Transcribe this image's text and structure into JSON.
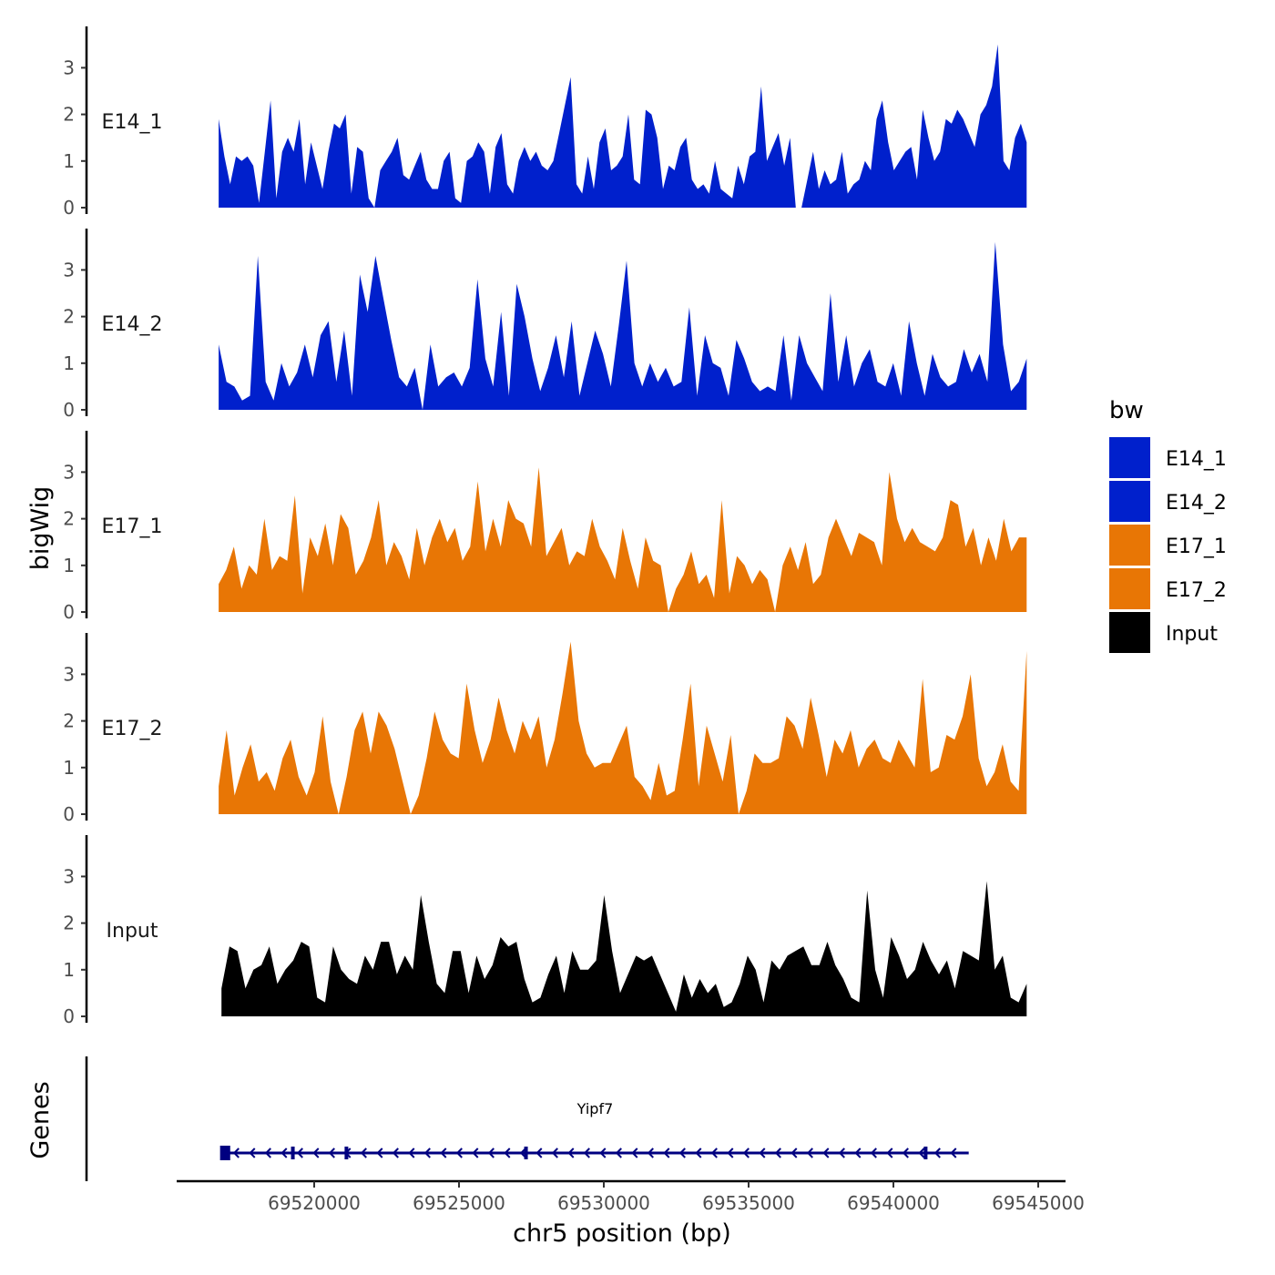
{
  "chart_data": {
    "type": "area",
    "title": "",
    "xlabel": "chr5 position (bp)",
    "ylabel": "bigWig",
    "genes_label": "Genes",
    "xlim": [
      69514600,
      69545500
    ],
    "ylim": [
      0,
      3.8
    ],
    "x_ticks": [
      69520000,
      69525000,
      69530000,
      69535000,
      69540000,
      69545000
    ],
    "x_tick_labels": [
      "69520000",
      "69525000",
      "69530000",
      "69535000",
      "69540000",
      "69545000"
    ],
    "y_ticks": [
      0,
      1,
      2,
      3
    ],
    "y_tick_labels": [
      "0",
      "1",
      "2",
      "3"
    ],
    "grid": false,
    "legend": {
      "title": "bw",
      "position": "right",
      "entries": [
        {
          "label": "E14_1",
          "color": "#0020CC"
        },
        {
          "label": "E14_2",
          "color": "#0020CC"
        },
        {
          "label": "E17_1",
          "color": "#E87605"
        },
        {
          "label": "E17_2",
          "color": "#E87605"
        },
        {
          "label": "Input",
          "color": "#000000"
        }
      ]
    },
    "series": [
      {
        "name": "E14_1",
        "color": "#0020CC",
        "x_start": 69516700,
        "x_end": 69544600,
        "values": [
          1.9,
          1.1,
          0.5,
          1.1,
          1.0,
          1.1,
          0.9,
          0.1,
          1.2,
          2.3,
          0.2,
          1.2,
          1.5,
          1.2,
          1.9,
          0.5,
          1.4,
          0.9,
          0.4,
          1.2,
          1.8,
          1.7,
          2.0,
          0.3,
          1.3,
          1.2,
          0.2,
          0.0,
          0.8,
          1.0,
          1.2,
          1.5,
          0.7,
          0.6,
          0.9,
          1.2,
          0.6,
          0.4,
          0.4,
          1.0,
          1.2,
          0.2,
          0.1,
          1.0,
          1.1,
          1.4,
          1.2,
          0.3,
          1.3,
          1.6,
          0.5,
          0.3,
          1.0,
          1.3,
          1.0,
          1.2,
          0.9,
          0.8,
          1.0,
          1.6,
          2.2,
          2.8,
          0.5,
          0.3,
          1.1,
          0.4,
          1.4,
          1.7,
          0.8,
          0.9,
          1.1,
          2.0,
          0.6,
          0.5,
          2.1,
          2.0,
          1.5,
          0.4,
          0.9,
          0.8,
          1.3,
          1.5,
          0.6,
          0.4,
          0.5,
          0.3,
          1.0,
          0.4,
          0.3,
          0.2,
          0.9,
          0.5,
          1.1,
          1.2,
          2.6,
          1.0,
          1.3,
          1.6,
          0.9,
          1.5,
          0.0,
          0.0,
          0.6,
          1.2,
          0.4,
          0.8,
          0.5,
          0.6,
          1.2,
          0.3,
          0.5,
          0.6,
          1.0,
          0.8,
          1.9,
          2.3,
          1.4,
          0.8,
          1.0,
          1.2,
          1.3,
          0.6,
          2.1,
          1.5,
          1.0,
          1.2,
          1.9,
          1.8,
          2.1,
          1.9,
          1.6,
          1.3,
          2.0,
          2.2,
          2.6,
          3.5,
          1.0,
          0.8,
          1.5,
          1.8,
          1.4
        ]
      },
      {
        "name": "E14_2",
        "color": "#0020CC",
        "x_start": 69516700,
        "x_end": 69544600,
        "values": [
          1.4,
          0.6,
          0.5,
          0.2,
          0.3,
          3.3,
          0.6,
          0.2,
          1.0,
          0.5,
          0.8,
          1.4,
          0.7,
          1.6,
          1.9,
          0.6,
          1.7,
          0.3,
          2.9,
          2.1,
          3.3,
          2.4,
          1.5,
          0.7,
          0.5,
          0.9,
          0.0,
          1.4,
          0.5,
          0.7,
          0.8,
          0.5,
          0.9,
          2.8,
          1.1,
          0.5,
          2.1,
          0.3,
          2.7,
          2.0,
          1.1,
          0.4,
          0.9,
          1.6,
          0.7,
          1.9,
          0.3,
          1.0,
          1.7,
          1.2,
          0.5,
          1.8,
          3.2,
          1.0,
          0.5,
          1.0,
          0.6,
          0.9,
          0.5,
          0.6,
          2.2,
          0.3,
          1.6,
          1.0,
          0.9,
          0.3,
          1.5,
          1.1,
          0.6,
          0.4,
          0.5,
          0.4,
          1.6,
          0.2,
          1.6,
          1.0,
          0.7,
          0.4,
          2.5,
          0.6,
          1.6,
          0.5,
          1.0,
          1.3,
          0.6,
          0.5,
          1.0,
          0.3,
          1.9,
          1.0,
          0.3,
          1.2,
          0.7,
          0.5,
          0.6,
          1.3,
          0.8,
          1.2,
          0.6,
          3.6,
          1.4,
          0.4,
          0.6,
          1.1
        ]
      },
      {
        "name": "E17_1",
        "color": "#E87605",
        "x_start": 69516700,
        "x_end": 69544600,
        "values": [
          0.6,
          0.9,
          1.4,
          0.5,
          1.0,
          0.8,
          2.0,
          0.9,
          1.2,
          1.1,
          2.5,
          0.4,
          1.6,
          1.2,
          1.9,
          1.0,
          2.1,
          1.8,
          0.8,
          1.1,
          1.6,
          2.4,
          1.0,
          1.5,
          1.2,
          0.7,
          1.8,
          1.0,
          1.6,
          2.0,
          1.5,
          1.8,
          1.1,
          1.4,
          2.8,
          1.3,
          2.0,
          1.4,
          2.4,
          2.0,
          1.9,
          1.4,
          3.1,
          1.2,
          1.5,
          1.8,
          1.0,
          1.3,
          1.2,
          2.0,
          1.4,
          1.1,
          0.7,
          1.8,
          1.1,
          0.5,
          1.6,
          1.1,
          1.0,
          0.0,
          0.5,
          0.8,
          1.3,
          0.6,
          0.8,
          0.3,
          2.4,
          0.4,
          1.2,
          1.0,
          0.6,
          0.9,
          0.7,
          0.0,
          1.0,
          1.4,
          0.9,
          1.5,
          0.6,
          0.8,
          1.6,
          2.0,
          1.6,
          1.2,
          1.7,
          1.6,
          1.5,
          1.0,
          3.0,
          2.0,
          1.5,
          1.8,
          1.5,
          1.4,
          1.3,
          1.6,
          2.4,
          2.3,
          1.4,
          1.8,
          1.0,
          1.6,
          1.1,
          2.0,
          1.3,
          1.6,
          1.6
        ]
      },
      {
        "name": "E17_2",
        "color": "#E87605",
        "x_start": 69516700,
        "x_end": 69544600,
        "values": [
          0.6,
          1.8,
          0.4,
          1.0,
          1.5,
          0.7,
          0.9,
          0.5,
          1.2,
          1.6,
          0.8,
          0.4,
          0.9,
          2.1,
          0.7,
          0.0,
          0.8,
          1.8,
          2.2,
          1.3,
          2.2,
          1.9,
          1.4,
          0.7,
          0.0,
          0.4,
          1.2,
          2.2,
          1.6,
          1.3,
          1.2,
          2.8,
          1.8,
          1.1,
          1.6,
          2.5,
          1.8,
          1.3,
          2.0,
          1.6,
          2.1,
          1.0,
          1.6,
          2.6,
          3.7,
          2.0,
          1.3,
          1.0,
          1.1,
          1.1,
          1.5,
          1.9,
          0.8,
          0.6,
          0.3,
          1.1,
          0.4,
          0.5,
          1.6,
          2.8,
          0.6,
          1.9,
          1.3,
          0.7,
          1.7,
          0.0,
          0.5,
          1.3,
          1.1,
          1.1,
          1.2,
          2.1,
          1.9,
          1.4,
          2.5,
          1.7,
          0.8,
          1.6,
          1.3,
          1.8,
          1.0,
          1.4,
          1.6,
          1.2,
          1.1,
          1.6,
          1.3,
          1.0,
          2.9,
          0.9,
          1.0,
          1.7,
          1.6,
          2.1,
          3.0,
          1.2,
          0.6,
          0.9,
          1.5,
          0.7,
          0.5,
          3.5
        ]
      },
      {
        "name": "Input",
        "color": "#000000",
        "x_start": 69516800,
        "x_end": 69544600,
        "values": [
          0.6,
          1.5,
          1.4,
          0.6,
          1.0,
          1.1,
          1.5,
          0.7,
          1.0,
          1.2,
          1.6,
          1.5,
          0.4,
          0.3,
          1.5,
          1.0,
          0.8,
          0.7,
          1.3,
          1.0,
          1.6,
          1.6,
          0.9,
          1.3,
          1.0,
          2.6,
          1.6,
          0.7,
          0.5,
          1.4,
          1.4,
          0.5,
          1.3,
          0.8,
          1.1,
          1.7,
          1.5,
          1.6,
          0.8,
          0.3,
          0.4,
          0.9,
          1.3,
          0.5,
          1.4,
          1.0,
          1.0,
          1.2,
          2.6,
          1.4,
          0.5,
          0.9,
          1.3,
          1.2,
          1.3,
          0.9,
          0.5,
          0.1,
          0.9,
          0.4,
          0.8,
          0.5,
          0.7,
          0.2,
          0.3,
          0.7,
          1.3,
          1.0,
          0.3,
          1.2,
          1.0,
          1.3,
          1.4,
          1.5,
          1.1,
          1.1,
          1.6,
          1.1,
          0.8,
          0.4,
          0.3,
          2.7,
          1.0,
          0.4,
          1.7,
          1.3,
          0.8,
          1.0,
          1.6,
          1.2,
          0.9,
          1.2,
          0.6,
          1.4,
          1.3,
          1.2,
          2.9,
          1.0,
          1.3,
          0.4,
          0.3,
          0.7
        ]
      }
    ],
    "gene_track": {
      "gene": "Yipf7",
      "strand": "-",
      "color": "#000080",
      "start": 69516800,
      "end": 69542600,
      "exons": [
        [
          69516750,
          69517100
        ],
        [
          69519200,
          69519300
        ],
        [
          69521050,
          69521150
        ],
        [
          69527250,
          69527350
        ],
        [
          69541050,
          69541150
        ]
      ]
    }
  }
}
